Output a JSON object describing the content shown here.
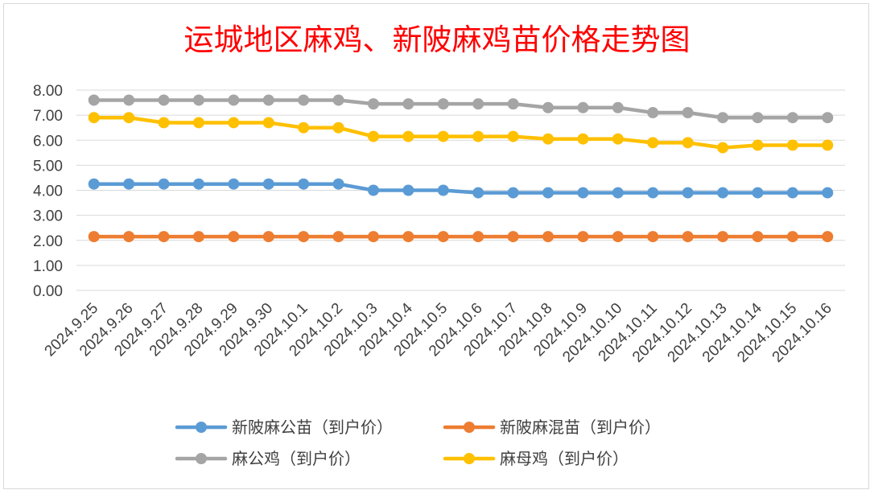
{
  "chart_data": {
    "type": "line",
    "title": "运城地区麻鸡、新陂麻鸡苗价格走势图",
    "xlabel": "",
    "ylabel": "",
    "ylim": [
      0,
      8
    ],
    "y_ticks": [
      "0.00",
      "1.00",
      "2.00",
      "3.00",
      "4.00",
      "5.00",
      "6.00",
      "7.00",
      "8.00"
    ],
    "y_tick_values": [
      0,
      1,
      2,
      3,
      4,
      5,
      6,
      7,
      8
    ],
    "grid": "horizontal",
    "legend_position": "bottom",
    "categories": [
      "2024.9.25",
      "2024.9.26",
      "2024.9.27",
      "2024.9.28",
      "2024.9.29",
      "2024.9.30",
      "2024.10.1",
      "2024.10.2",
      "2024.10.3",
      "2024.10.4",
      "2024.10.5",
      "2024.10.6",
      "2024.10.7",
      "2024.10.8",
      "2024.10.9",
      "2024.10.10",
      "2024.10.11",
      "2024.10.12",
      "2024.10.13",
      "2024.10.14",
      "2024.10.15",
      "2024.10.16"
    ],
    "series": [
      {
        "name": "新陂麻公苗（到户价）",
        "color": "#5b9bd5",
        "values": [
          4.25,
          4.25,
          4.25,
          4.25,
          4.25,
          4.25,
          4.25,
          4.25,
          4.0,
          4.0,
          4.0,
          3.9,
          3.9,
          3.9,
          3.9,
          3.9,
          3.9,
          3.9,
          3.9,
          3.9,
          3.9,
          3.9
        ]
      },
      {
        "name": "新陂麻混苗（到户价）",
        "color": "#ed7d31",
        "values": [
          2.15,
          2.15,
          2.15,
          2.15,
          2.15,
          2.15,
          2.15,
          2.15,
          2.15,
          2.15,
          2.15,
          2.15,
          2.15,
          2.15,
          2.15,
          2.15,
          2.15,
          2.15,
          2.15,
          2.15,
          2.15,
          2.15
        ]
      },
      {
        "name": "麻公鸡（到户价）",
        "color": "#a5a5a5",
        "values": [
          7.6,
          7.6,
          7.6,
          7.6,
          7.6,
          7.6,
          7.6,
          7.6,
          7.45,
          7.45,
          7.45,
          7.45,
          7.45,
          7.3,
          7.3,
          7.3,
          7.1,
          7.1,
          6.9,
          6.9,
          6.9,
          6.9
        ]
      },
      {
        "name": "麻母鸡（到户价）",
        "color": "#ffc000",
        "values": [
          6.9,
          6.9,
          6.7,
          6.7,
          6.7,
          6.7,
          6.5,
          6.5,
          6.15,
          6.15,
          6.15,
          6.15,
          6.15,
          6.05,
          6.05,
          6.05,
          5.9,
          5.9,
          5.7,
          5.8,
          5.8,
          5.8
        ]
      }
    ]
  },
  "style": {
    "grid_color": "#d9d9d9",
    "axis_text_color": "#404040",
    "title_color": "#ff0000"
  }
}
